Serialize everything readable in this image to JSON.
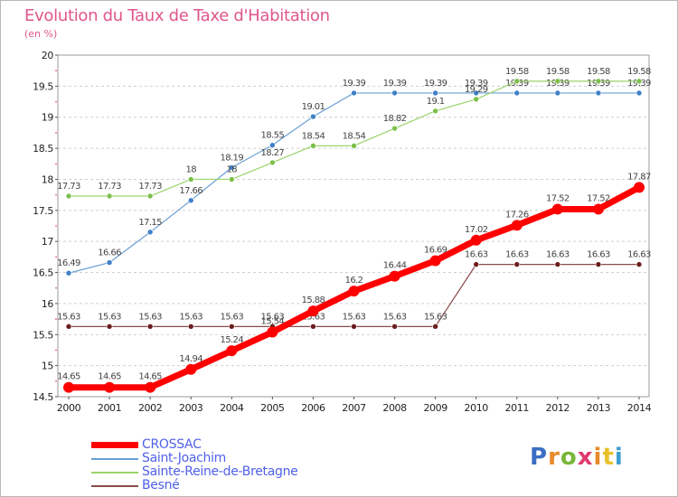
{
  "page": {
    "title": "Evolution du Taux de Taxe d'Habitation",
    "unit": "(en %)",
    "logo_letters": [
      "P",
      "r",
      "o",
      "x",
      "i",
      "t",
      "i"
    ],
    "logo_colors": [
      "#3b6ec2",
      "#e8892a",
      "#78b83a",
      "#e03b6d",
      "#e8892a",
      "#e8c02a",
      "#3b9ed0"
    ]
  },
  "chart_data": {
    "type": "line",
    "x": [
      2000,
      2001,
      2002,
      2003,
      2004,
      2005,
      2006,
      2007,
      2008,
      2009,
      2010,
      2011,
      2012,
      2013,
      2014
    ],
    "ylim": [
      14.5,
      20
    ],
    "yticks": [
      14.5,
      15,
      15.5,
      16,
      16.5,
      17,
      17.5,
      18,
      18.5,
      19,
      19.5,
      20
    ],
    "ytick_labels": [
      "14.5",
      "15",
      "15.5",
      "16",
      "16.5",
      "17",
      "17.5",
      "18",
      "18.5",
      "19",
      "19.5",
      "20"
    ],
    "xtick_labels": [
      "2000",
      "2001",
      "2002",
      "2003",
      "2004",
      "2005",
      "2006",
      "2007",
      "2008",
      "2009",
      "2010",
      "2011",
      "2012",
      "2013",
      "2014"
    ],
    "grid": "horizontal dashed",
    "legend_position": "bottom-left",
    "series": [
      {
        "name": "Saint-Joachim",
        "color": "#6a9fd4",
        "marker": "#3f80c8",
        "values": [
          16.49,
          16.66,
          17.15,
          17.66,
          18.19,
          18.55,
          19.01,
          19.39,
          19.39,
          19.39,
          19.39,
          19.39,
          19.39,
          19.39,
          19.39
        ],
        "labels": [
          "16.49",
          "16.66",
          "17.15",
          "17.66",
          "18.19",
          "18.55",
          "19.01",
          "19.39",
          "19.39",
          "19.39",
          "19.39",
          "19.39",
          "19.39",
          "19.39",
          "19.39"
        ]
      },
      {
        "name": "Sainte-Reine-de-Bretagne",
        "color": "#9ad36a",
        "marker": "#7cc04a",
        "values": [
          17.73,
          17.73,
          17.73,
          18,
          18,
          18.27,
          18.54,
          18.54,
          18.82,
          19.1,
          19.29,
          19.58,
          19.58,
          19.58,
          19.58
        ],
        "labels": [
          "17.73",
          "17.73",
          "17.73",
          "18",
          "18",
          "18.27",
          "18.54",
          "18.54",
          "18.82",
          "19.1",
          "19.29",
          "19.58",
          "19.58",
          "19.58",
          "19.58"
        ]
      },
      {
        "name": "Besné",
        "color": "#8a4a4a",
        "marker": "#6b1d1d",
        "values": [
          15.63,
          15.63,
          15.63,
          15.63,
          15.63,
          15.63,
          15.63,
          15.63,
          15.63,
          15.63,
          16.63,
          16.63,
          16.63,
          16.63,
          16.63
        ],
        "labels": [
          "15.63",
          "15.63",
          "15.63",
          "15.63",
          "15.63",
          "15.63",
          "15.63",
          "15.63",
          "15.63",
          "15.63",
          "16.63",
          "16.63",
          "16.63",
          "16.63",
          "16.63"
        ]
      },
      {
        "name": "CROSSAC",
        "color": "#ff0000",
        "marker": "#ff0000",
        "values": [
          14.65,
          14.65,
          14.65,
          14.94,
          15.24,
          15.54,
          15.88,
          16.2,
          16.44,
          16.69,
          17.02,
          17.26,
          17.52,
          17.52,
          17.87
        ],
        "labels": [
          "14.65",
          "14.65",
          "14.65",
          "14.94",
          "15.24",
          "15.54",
          "15.88",
          "16.2",
          "16.44",
          "16.69",
          "17.02",
          "17.26",
          "17.52",
          "17.52",
          "17.87"
        ]
      }
    ],
    "legend": [
      {
        "name": "CROSSAC",
        "color": "#ff0000",
        "thick": true
      },
      {
        "name": "Saint-Joachim",
        "color": "#6a9fd4",
        "thick": false
      },
      {
        "name": "Sainte-Reine-de-Bretagne",
        "color": "#9ad36a",
        "thick": false
      },
      {
        "name": "Besné",
        "color": "#8a4a4a",
        "thick": false
      }
    ]
  }
}
